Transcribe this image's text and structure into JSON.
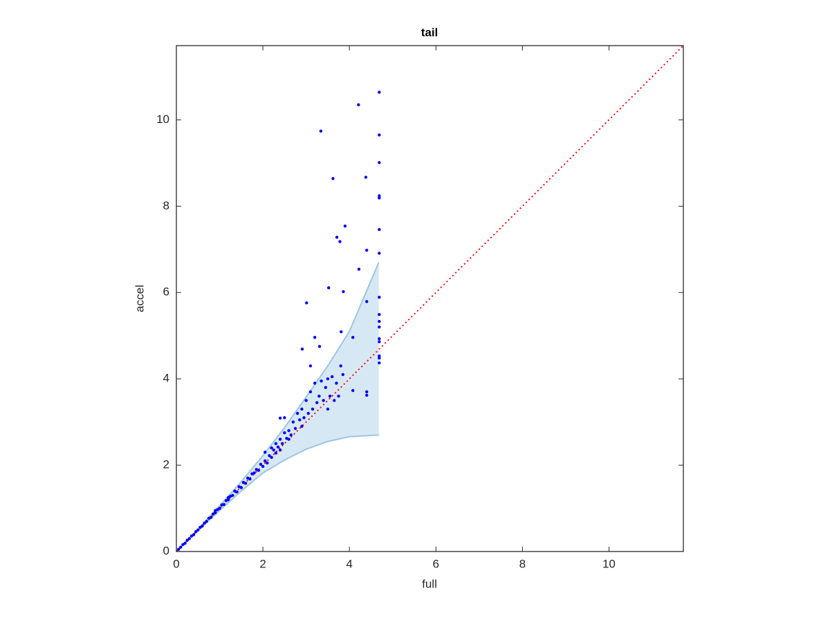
{
  "chart_data": {
    "type": "scatter",
    "title": "tail",
    "x_label": "full",
    "y_label": "accel",
    "xlim": [
      0,
      11.72
    ],
    "ylim": [
      0,
      11.72
    ],
    "xticks": [
      0,
      2,
      4,
      6,
      8,
      10
    ],
    "yticks": [
      0,
      2,
      4,
      6,
      8,
      10
    ],
    "grid": false,
    "series": [
      {
        "type": "area",
        "color": "#9ac6e6",
        "x": [
          0,
          0.5,
          1,
          1.5,
          2,
          2.5,
          3,
          3.5,
          4,
          4.68
        ],
        "upper": [
          0,
          0.52,
          1.06,
          1.62,
          2.22,
          2.87,
          3.58,
          4.3,
          5.1,
          6.7
        ],
        "lower": [
          0,
          0.48,
          0.95,
          1.4,
          1.82,
          2.12,
          2.37,
          2.55,
          2.66,
          2.7
        ]
      },
      {
        "type": "line",
        "color": "#ff0000",
        "style": "dotted",
        "x": [
          0,
          11.72
        ],
        "values": [
          0,
          11.72
        ]
      },
      {
        "type": "scatter",
        "color": "#0000ff",
        "x": [
          0.05,
          0.1,
          0.15,
          0.2,
          0.25,
          0.3,
          0.35,
          0.4,
          0.45,
          0.5,
          0.55,
          0.6,
          0.65,
          0.7,
          0.75,
          0.8,
          0.85,
          0.9,
          0.95,
          1.0,
          1.05,
          1.1,
          1.15,
          1.2,
          1.25,
          1.3,
          1.35,
          1.4,
          1.45,
          1.5,
          1.55,
          1.6,
          1.65,
          1.7,
          1.75,
          1.8,
          1.85,
          1.9,
          1.95,
          2.0,
          2.05,
          2.1,
          2.15,
          2.2,
          2.25,
          2.3,
          2.3,
          2.35,
          2.4,
          2.45,
          2.5,
          2.55,
          2.6,
          2.65,
          2.7,
          2.75,
          2.8,
          2.85,
          2.9,
          2.95,
          3.0,
          3.05,
          3.1,
          3.15,
          3.2,
          3.25,
          3.3,
          3.35,
          3.4,
          3.45,
          3.5,
          3.55,
          3.6,
          3.65,
          3.7,
          3.75,
          3.8,
          3.85,
          2.2,
          2.4,
          2.6,
          2.9,
          1.2,
          0.9,
          2.05,
          2.5,
          2.4,
          3.5,
          3.1,
          4.69,
          4.21,
          3.34,
          4.69,
          4.69,
          3.62,
          4.38,
          4.69,
          4.69,
          3.9,
          4.69,
          3.71,
          3.78,
          4.4,
          4.69,
          4.22,
          3.01,
          3.52,
          3.86,
          4.69,
          4.4,
          4.69,
          4.69,
          4.69,
          4.69,
          4.69,
          4.08,
          3.81,
          3.2,
          2.91,
          3.31,
          4.69,
          4.69,
          4.69,
          4.4,
          4.4,
          4.08
        ],
        "values": [
          0.05,
          0.1,
          0.16,
          0.19,
          0.26,
          0.3,
          0.36,
          0.39,
          0.46,
          0.5,
          0.56,
          0.59,
          0.66,
          0.7,
          0.77,
          0.79,
          0.87,
          0.9,
          0.97,
          1.0,
          1.08,
          1.09,
          1.18,
          1.2,
          1.28,
          1.3,
          1.4,
          1.38,
          1.5,
          1.48,
          1.6,
          1.58,
          1.7,
          1.68,
          1.8,
          1.82,
          1.9,
          1.88,
          2.02,
          1.97,
          2.1,
          2.05,
          2.22,
          2.18,
          2.35,
          2.28,
          2.5,
          2.42,
          2.6,
          2.5,
          2.75,
          2.62,
          2.8,
          2.7,
          3.0,
          2.85,
          3.2,
          3.05,
          3.3,
          3.1,
          3.5,
          3.2,
          3.7,
          3.3,
          3.9,
          3.45,
          3.6,
          3.95,
          3.5,
          3.8,
          4.0,
          3.6,
          4.05,
          3.5,
          3.9,
          3.6,
          4.3,
          4.1,
          2.4,
          2.35,
          2.6,
          2.9,
          1.25,
          0.95,
          2.3,
          3.1,
          3.09,
          3.3,
          4.3,
          10.64,
          10.35,
          9.74,
          9.65,
          9.01,
          8.64,
          8.67,
          8.24,
          8.19,
          7.54,
          7.46,
          7.28,
          7.18,
          6.98,
          6.91,
          6.54,
          5.76,
          6.11,
          6.02,
          5.89,
          5.79,
          5.49,
          5.33,
          5.2,
          4.93,
          4.86,
          4.96,
          5.09,
          4.96,
          4.69,
          4.75,
          4.53,
          4.48,
          4.37,
          3.7,
          3.62,
          3.73
        ]
      }
    ]
  }
}
